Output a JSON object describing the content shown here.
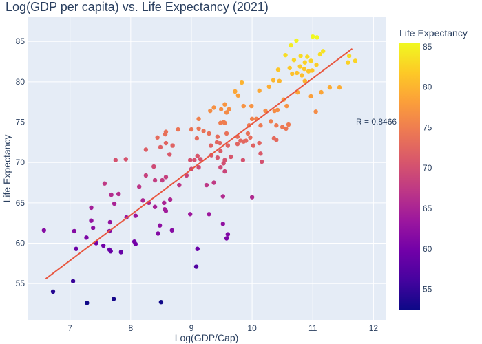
{
  "chart_data": {
    "type": "scatter",
    "title": "Log(GDP per capita) vs. Life Expectancy (2021)",
    "xlabel": "Log(GDP/Cap)",
    "ylabel": "Life Expectancy",
    "xlim": [
      6.3,
      12.2
    ],
    "ylim": [
      50.5,
      88
    ],
    "x_ticks": [
      7,
      8,
      9,
      10,
      11,
      12
    ],
    "y_ticks": [
      55,
      60,
      65,
      70,
      75,
      80,
      85
    ],
    "grid": true,
    "colorbar": {
      "title": "Life Expectancy",
      "min": 52.5,
      "max": 85.5,
      "ticks": [
        55,
        60,
        65,
        70,
        75,
        80,
        85
      ]
    },
    "annotation": "R = 0.8466",
    "trendline": {
      "x": [
        6.6,
        11.65
      ],
      "y": [
        55.6,
        84.1
      ]
    },
    "points": [
      {
        "x": 10.73,
        "y": 85.1
      },
      {
        "x": 11.0,
        "y": 85.6
      },
      {
        "x": 11.07,
        "y": 85.5
      },
      {
        "x": 10.64,
        "y": 84.5
      },
      {
        "x": 10.55,
        "y": 83.3
      },
      {
        "x": 10.8,
        "y": 83.2
      },
      {
        "x": 10.91,
        "y": 83.1
      },
      {
        "x": 11.12,
        "y": 83.4
      },
      {
        "x": 11.17,
        "y": 83.8
      },
      {
        "x": 11.6,
        "y": 83.2
      },
      {
        "x": 10.69,
        "y": 82.7
      },
      {
        "x": 10.87,
        "y": 82.4
      },
      {
        "x": 10.97,
        "y": 82.6
      },
      {
        "x": 11.06,
        "y": 82.1
      },
      {
        "x": 11.58,
        "y": 82.4
      },
      {
        "x": 11.7,
        "y": 82.6
      },
      {
        "x": 10.62,
        "y": 81.7
      },
      {
        "x": 10.79,
        "y": 81.9
      },
      {
        "x": 10.86,
        "y": 81.6
      },
      {
        "x": 10.93,
        "y": 81.3
      },
      {
        "x": 10.99,
        "y": 81.4
      },
      {
        "x": 10.66,
        "y": 81.0
      },
      {
        "x": 10.74,
        "y": 81.1
      },
      {
        "x": 10.82,
        "y": 80.8
      },
      {
        "x": 10.43,
        "y": 81.5
      },
      {
        "x": 10.35,
        "y": 80.2
      },
      {
        "x": 10.45,
        "y": 80.1
      },
      {
        "x": 10.87,
        "y": 80.1
      },
      {
        "x": 10.28,
        "y": 79.4
      },
      {
        "x": 11.28,
        "y": 79.3
      },
      {
        "x": 11.44,
        "y": 79.3
      },
      {
        "x": 10.12,
        "y": 78.9
      },
      {
        "x": 10.75,
        "y": 78.7
      },
      {
        "x": 11.14,
        "y": 78.7
      },
      {
        "x": 9.72,
        "y": 78.8
      },
      {
        "x": 9.77,
        "y": 78.3
      },
      {
        "x": 9.83,
        "y": 79.9
      },
      {
        "x": 10.52,
        "y": 77.8
      },
      {
        "x": 10.97,
        "y": 78.2
      },
      {
        "x": 9.55,
        "y": 77.2
      },
      {
        "x": 9.86,
        "y": 77.0
      },
      {
        "x": 9.99,
        "y": 77.0
      },
      {
        "x": 9.49,
        "y": 76.6
      },
      {
        "x": 9.58,
        "y": 76.2
      },
      {
        "x": 9.62,
        "y": 76.6
      },
      {
        "x": 9.31,
        "y": 76.4
      },
      {
        "x": 9.37,
        "y": 76.8
      },
      {
        "x": 10.37,
        "y": 76.4
      },
      {
        "x": 10.42,
        "y": 76.5
      },
      {
        "x": 10.22,
        "y": 76.4
      },
      {
        "x": 10.57,
        "y": 77.0
      },
      {
        "x": 11.05,
        "y": 76.3
      },
      {
        "x": 9.12,
        "y": 75.4
      },
      {
        "x": 9.48,
        "y": 74.9
      },
      {
        "x": 9.55,
        "y": 74.9
      },
      {
        "x": 10.0,
        "y": 75.4
      },
      {
        "x": 10.07,
        "y": 75.4
      },
      {
        "x": 10.31,
        "y": 75.1
      },
      {
        "x": 9.95,
        "y": 74.6
      },
      {
        "x": 10.14,
        "y": 74.6
      },
      {
        "x": 9.53,
        "y": 75.0
      },
      {
        "x": 10.4,
        "y": 74.6
      },
      {
        "x": 10.56,
        "y": 74.2
      },
      {
        "x": 10.5,
        "y": 74.4
      },
      {
        "x": 10.6,
        "y": 74.7
      },
      {
        "x": 8.78,
        "y": 74.1
      },
      {
        "x": 8.58,
        "y": 73.8
      },
      {
        "x": 9.0,
        "y": 74.1
      },
      {
        "x": 9.12,
        "y": 74.2
      },
      {
        "x": 9.29,
        "y": 73.6
      },
      {
        "x": 9.2,
        "y": 73.9
      },
      {
        "x": 9.43,
        "y": 73.2
      },
      {
        "x": 9.76,
        "y": 73.2
      },
      {
        "x": 8.57,
        "y": 73.5
      },
      {
        "x": 8.44,
        "y": 73.1
      },
      {
        "x": 9.09,
        "y": 73.0
      },
      {
        "x": 9.58,
        "y": 73.6
      },
      {
        "x": 9.93,
        "y": 73.6
      },
      {
        "x": 9.97,
        "y": 73.1
      },
      {
        "x": 10.36,
        "y": 73.0
      },
      {
        "x": 10.4,
        "y": 72.8
      },
      {
        "x": 9.81,
        "y": 72.7
      },
      {
        "x": 9.86,
        "y": 72.6
      },
      {
        "x": 9.9,
        "y": 72.7
      },
      {
        "x": 9.32,
        "y": 72.1
      },
      {
        "x": 9.42,
        "y": 72.5
      },
      {
        "x": 9.47,
        "y": 72.4
      },
      {
        "x": 9.76,
        "y": 72.3
      },
      {
        "x": 8.25,
        "y": 71.6
      },
      {
        "x": 8.49,
        "y": 71.9
      },
      {
        "x": 8.58,
        "y": 72.4
      },
      {
        "x": 8.69,
        "y": 72.1
      },
      {
        "x": 9.6,
        "y": 72.1
      },
      {
        "x": 10.02,
        "y": 72.1
      },
      {
        "x": 10.12,
        "y": 72.4
      },
      {
        "x": 10.14,
        "y": 71.1
      },
      {
        "x": 8.64,
        "y": 71.0
      },
      {
        "x": 9.1,
        "y": 70.8
      },
      {
        "x": 9.33,
        "y": 70.9
      },
      {
        "x": 9.48,
        "y": 71.4
      },
      {
        "x": 9.43,
        "y": 70.6
      },
      {
        "x": 9.55,
        "y": 70.3
      },
      {
        "x": 9.65,
        "y": 70.7
      },
      {
        "x": 8.98,
        "y": 70.3
      },
      {
        "x": 9.05,
        "y": 70.3
      },
      {
        "x": 9.15,
        "y": 70.4
      },
      {
        "x": 9.53,
        "y": 69.9
      },
      {
        "x": 9.85,
        "y": 70.3
      },
      {
        "x": 10.16,
        "y": 70.1
      },
      {
        "x": 7.75,
        "y": 70.3
      },
      {
        "x": 7.92,
        "y": 70.4
      },
      {
        "x": 8.38,
        "y": 69.5
      },
      {
        "x": 9.0,
        "y": 69.2
      },
      {
        "x": 9.12,
        "y": 69.4
      },
      {
        "x": 9.48,
        "y": 69.4
      },
      {
        "x": 9.55,
        "y": 68.9
      },
      {
        "x": 8.25,
        "y": 68.4
      },
      {
        "x": 8.4,
        "y": 67.8
      },
      {
        "x": 8.58,
        "y": 68.2
      },
      {
        "x": 8.92,
        "y": 68.4
      },
      {
        "x": 7.57,
        "y": 67.4
      },
      {
        "x": 8.8,
        "y": 67.2
      },
      {
        "x": 9.25,
        "y": 67.2
      },
      {
        "x": 9.37,
        "y": 67.5
      },
      {
        "x": 7.8,
        "y": 66.1
      },
      {
        "x": 8.14,
        "y": 67.0
      },
      {
        "x": 7.68,
        "y": 66.0
      },
      {
        "x": 8.52,
        "y": 67.8
      },
      {
        "x": 9.52,
        "y": 65.8
      },
      {
        "x": 10.0,
        "y": 65.7
      },
      {
        "x": 8.2,
        "y": 65.3
      },
      {
        "x": 8.3,
        "y": 65.0
      },
      {
        "x": 8.55,
        "y": 65.0
      },
      {
        "x": 7.73,
        "y": 64.9
      },
      {
        "x": 8.4,
        "y": 64.5
      },
      {
        "x": 8.65,
        "y": 65.4
      },
      {
        "x": 8.56,
        "y": 64.2
      },
      {
        "x": 8.58,
        "y": 64.0
      },
      {
        "x": 7.35,
        "y": 64.4
      },
      {
        "x": 8.08,
        "y": 63.4
      },
      {
        "x": 7.93,
        "y": 63.2
      },
      {
        "x": 8.98,
        "y": 63.6
      },
      {
        "x": 9.29,
        "y": 63.6
      },
      {
        "x": 9.52,
        "y": 62.4
      },
      {
        "x": 7.66,
        "y": 62.6
      },
      {
        "x": 8.48,
        "y": 62.2
      },
      {
        "x": 7.35,
        "y": 62.8
      },
      {
        "x": 7.38,
        "y": 61.9
      },
      {
        "x": 7.65,
        "y": 61.5
      },
      {
        "x": 7.07,
        "y": 61.5
      },
      {
        "x": 6.57,
        "y": 61.6
      },
      {
        "x": 8.45,
        "y": 61.2
      },
      {
        "x": 8.68,
        "y": 61.6
      },
      {
        "x": 9.6,
        "y": 61.1
      },
      {
        "x": 9.58,
        "y": 60.6
      },
      {
        "x": 7.27,
        "y": 60.7
      },
      {
        "x": 8.06,
        "y": 60.2
      },
      {
        "x": 8.08,
        "y": 59.9
      },
      {
        "x": 7.43,
        "y": 60.0
      },
      {
        "x": 7.55,
        "y": 59.7
      },
      {
        "x": 7.1,
        "y": 59.3
      },
      {
        "x": 7.65,
        "y": 59.2
      },
      {
        "x": 7.67,
        "y": 59.0
      },
      {
        "x": 7.84,
        "y": 58.9
      },
      {
        "x": 9.1,
        "y": 59.3
      },
      {
        "x": 9.08,
        "y": 57.1
      },
      {
        "x": 7.05,
        "y": 55.3
      },
      {
        "x": 6.72,
        "y": 54.0
      },
      {
        "x": 7.28,
        "y": 52.6
      },
      {
        "x": 7.72,
        "y": 53.1
      },
      {
        "x": 8.5,
        "y": 52.7
      }
    ]
  }
}
